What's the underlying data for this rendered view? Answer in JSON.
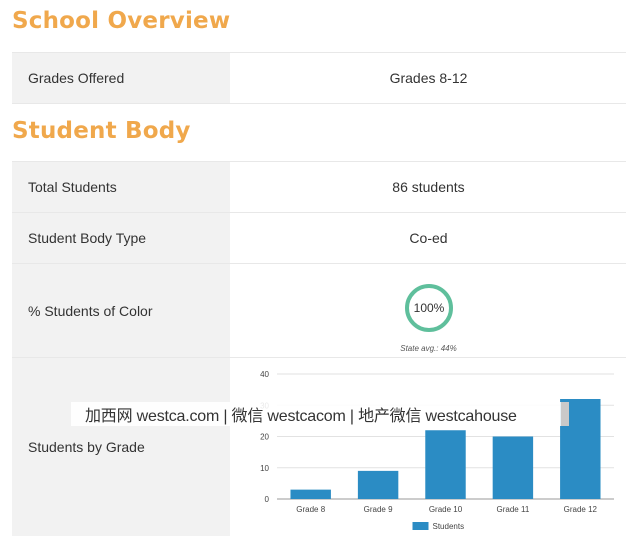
{
  "school_overview": {
    "title": "School Overview",
    "rows": [
      {
        "label": "Grades Offered",
        "value": "Grades 8-12"
      }
    ]
  },
  "student_body": {
    "title": "Student Body",
    "rows": [
      {
        "label": "Total Students",
        "value": "86 students"
      },
      {
        "label": "Student Body Type",
        "value": "Co-ed"
      },
      {
        "label": "% Students of Color",
        "value": "100%",
        "state_avg": "State avg.: 44%"
      },
      {
        "label": "Students by Grade"
      }
    ]
  },
  "watermark": "加西网 westca.com | 微信 westcacom | 地产微信 westcahouse",
  "colors": {
    "heading": "#f0a84c",
    "ring": "#5fbf9c",
    "bar": "#2b8cc4"
  },
  "chart_data": {
    "type": "bar",
    "categories": [
      "Grade 8",
      "Grade 9",
      "Grade 10",
      "Grade 11",
      "Grade 12"
    ],
    "series": [
      {
        "name": "Students",
        "values": [
          3,
          9,
          22,
          20,
          32
        ]
      }
    ],
    "yticks": [
      0,
      10,
      20,
      30,
      40
    ],
    "ylim": [
      0,
      40
    ],
    "grid": true,
    "legend": "bottom"
  }
}
